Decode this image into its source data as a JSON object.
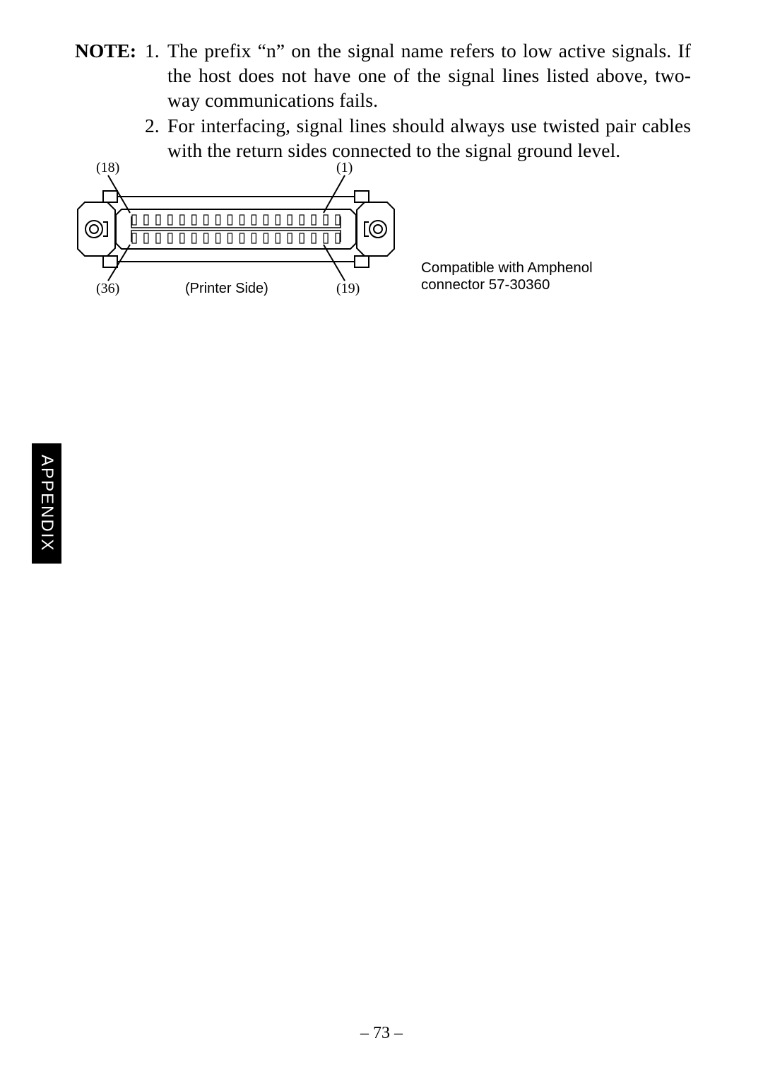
{
  "note": {
    "label": "NOTE:",
    "items": [
      {
        "num": "1.",
        "text": "The prefix “n” on the signal name refers to low active signals. If the host does not have one of the signal lines listed above, two-way communications fails."
      },
      {
        "num": "2.",
        "text": "For interfacing, signal lines should always use twisted pair cables with the return sides connected to the signal ground level."
      }
    ]
  },
  "diagram": {
    "pin_labels": {
      "tl": "(18)",
      "tr": "(1)",
      "bl": "(36)",
      "br": "(19)"
    },
    "printer_side": "(Printer Side)",
    "compat_line1": "Compatible with Amphenol",
    "compat_line2": "connector 57-30360",
    "stroke": "#000000",
    "stroke_width": 2,
    "pin_count_per_row": 18,
    "label_fontsize": 20,
    "compat_fontsize": 20.5
  },
  "side_tab": "APPENDIX",
  "page_number": "– 73 –",
  "colors": {
    "bg": "#ffffff",
    "text": "#000000",
    "tab_bg": "#000000",
    "tab_text": "#ffffff"
  }
}
